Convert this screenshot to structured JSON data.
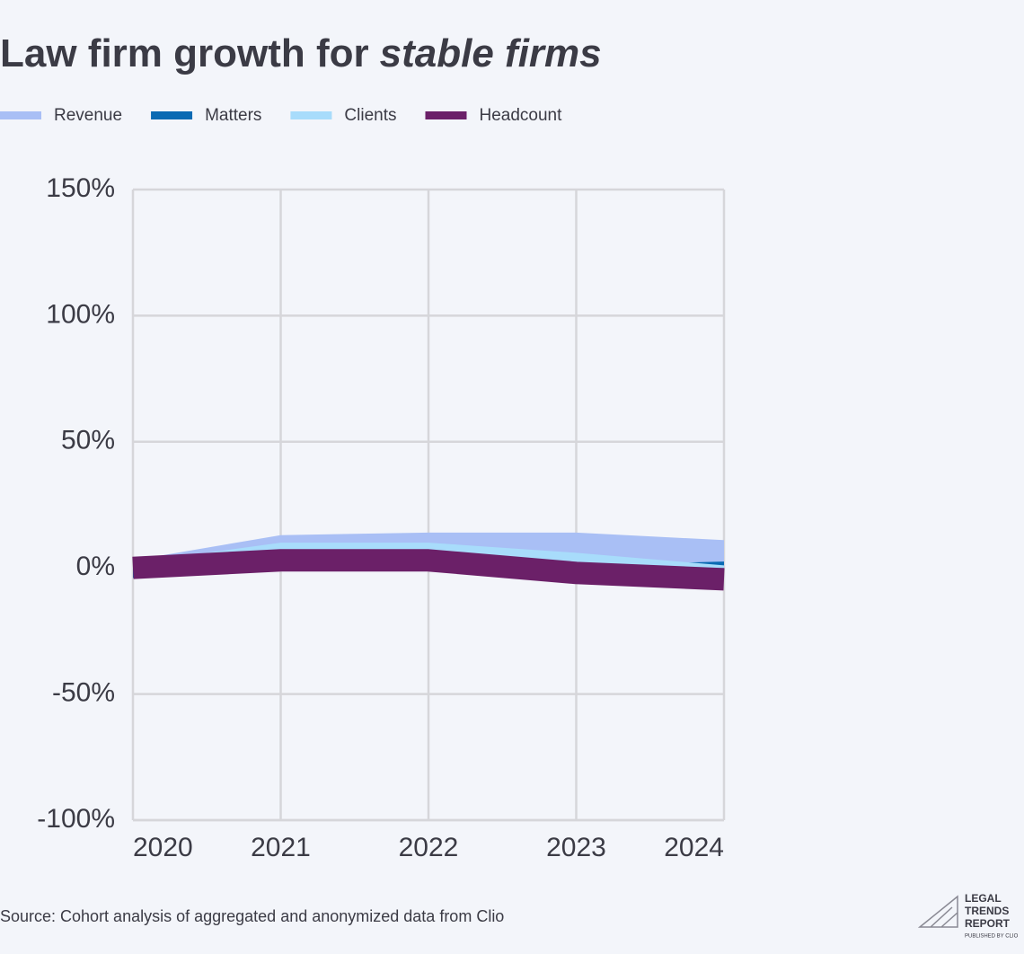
{
  "chart_data": {
    "type": "area",
    "title": {
      "main": "Law firm growth for",
      "italic": "stable firms"
    },
    "categories": [
      "2020",
      "2021",
      "2022",
      "2023",
      "2024"
    ],
    "series": [
      {
        "name": "Revenue",
        "color": "#a9bff5",
        "values": [
          3,
          13,
          14,
          14,
          11
        ]
      },
      {
        "name": "Matters",
        "color": "#0a6ab3",
        "values": [
          -4,
          3,
          3,
          1,
          2.5
        ]
      },
      {
        "name": "Clients",
        "color": "#a8dcfb",
        "values": [
          2,
          10,
          10,
          6,
          1
        ]
      },
      {
        "name": "Headcount",
        "color": "#6b2068",
        "values": [
          0,
          3,
          3,
          -2,
          -4.5
        ]
      }
    ],
    "ylim": [
      -100,
      150
    ],
    "yticks": [
      {
        "value": -100,
        "label": "-100%"
      },
      {
        "value": -50,
        "label": "-50%"
      },
      {
        "value": 0,
        "label": "0%"
      },
      {
        "value": 50,
        "label": "50%"
      },
      {
        "value": 100,
        "label": "100%"
      },
      {
        "value": 150,
        "label": "150%"
      }
    ],
    "grid": true,
    "source": "Source: Cohort analysis of aggregated and anonymized data from Clio",
    "logo": {
      "lines": [
        "LEGAL",
        "TRENDS",
        "REPORT"
      ],
      "tagline": "PUBLISHED BY CLIO"
    }
  }
}
